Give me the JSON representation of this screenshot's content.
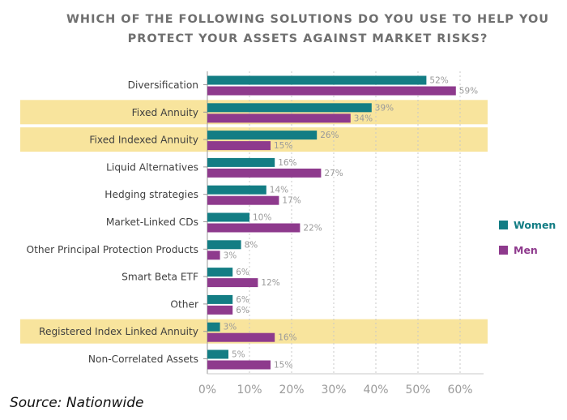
{
  "chart_data": {
    "type": "bar",
    "orientation": "horizontal",
    "title": "WHICH OF THE FOLLOWING SOLUTIONS DO YOU USE TO HELP YOU PROTECT YOUR ASSETS AGAINST MARKET RISKS?",
    "title_lines": [
      "WHICH OF THE FOLLOWING SOLUTIONS DO YOU USE TO HELP YOU",
      "PROTECT YOUR ASSETS AGAINST MARKET RISKS?"
    ],
    "categories": [
      "Diversification",
      "Fixed Annuity",
      "Fixed Indexed Annuity",
      "Liquid Alternatives",
      "Hedging strategies",
      "Market-Linked CDs",
      "Other Principal Protection Products",
      "Smart Beta ETF",
      "Other",
      "Registered Index Linked Annuity",
      "Non-Correlated Assets"
    ],
    "highlighted": [
      "Fixed Annuity",
      "Fixed Indexed Annuity",
      "Registered Index Linked Annuity"
    ],
    "series": [
      {
        "name": "Women",
        "color": "#137d84",
        "values": [
          52,
          39,
          26,
          16,
          14,
          10,
          8,
          6,
          6,
          3,
          5
        ]
      },
      {
        "name": "Men",
        "color": "#8e3a8d",
        "values": [
          59,
          34,
          15,
          27,
          17,
          22,
          3,
          12,
          6,
          16,
          15
        ]
      }
    ],
    "value_suffix": "%",
    "xlim": [
      0,
      65
    ],
    "xticks": [
      0,
      10,
      20,
      30,
      40,
      50,
      60
    ],
    "xtick_labels": [
      "0%",
      "10%",
      "20%",
      "30%",
      "40%",
      "50%",
      "60%"
    ],
    "grid": true,
    "legend_position": "right",
    "highlight_color": "#f8e49d"
  },
  "source_note": "Source: Nationwide"
}
